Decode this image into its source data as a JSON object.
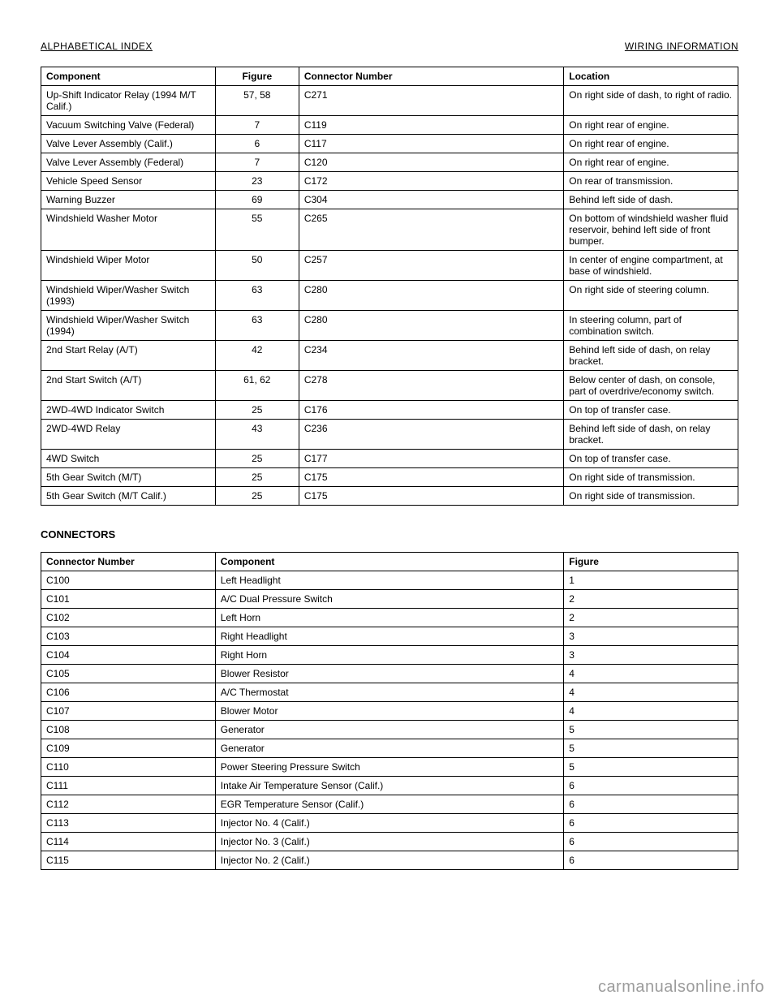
{
  "header": {
    "left": "ALPHABETICAL INDEX",
    "right": "WIRING INFORMATION"
  },
  "table1": {
    "columns": [
      "Component",
      "Figure",
      "Connector Number",
      "Location"
    ],
    "rows": [
      [
        "Up-Shift Indicator Relay (1994 M/T Calif.)",
        "57, 58",
        "C271",
        "On right side of dash, to right of radio."
      ],
      [
        "Vacuum Switching Valve (Federal)",
        "7",
        "C119",
        "On right rear of engine."
      ],
      [
        "Valve Lever Assembly (Calif.)",
        "6",
        "C117",
        "On right rear of engine."
      ],
      [
        "Valve Lever Assembly (Federal)",
        "7",
        "C120",
        "On right rear of engine."
      ],
      [
        "Vehicle Speed Sensor",
        "23",
        "C172",
        "On rear of transmission."
      ],
      [
        "Warning Buzzer",
        "69",
        "C304",
        "Behind left side of dash."
      ],
      [
        "Windshield Washer Motor",
        "55",
        "C265",
        "On bottom of windshield washer fluid reservoir, behind left side of front bumper."
      ],
      [
        "Windshield Wiper Motor",
        "50",
        "C257",
        "In center of engine compartment, at base of windshield."
      ],
      [
        "Windshield Wiper/Washer Switch (1993)",
        "63",
        "C280",
        "On right side of steering column."
      ],
      [
        "Windshield Wiper/Washer Switch (1994)",
        "63",
        "C280",
        "In steering column, part of combination switch."
      ],
      [
        "2nd Start Relay (A/T)",
        "42",
        "C234",
        "Behind left side of dash, on relay bracket."
      ],
      [
        "2nd Start Switch (A/T)",
        "61, 62",
        "C278",
        "Below center of dash, on console, part of overdrive/economy switch."
      ],
      [
        "2WD-4WD Indicator Switch",
        "25",
        "C176",
        "On top of transfer case."
      ],
      [
        "2WD-4WD Relay",
        "43",
        "C236",
        "Behind left side of dash, on relay bracket."
      ],
      [
        "4WD Switch",
        "25",
        "C177",
        "On top of transfer case."
      ],
      [
        "5th Gear Switch (M/T)",
        "25",
        "C175",
        "On right side of transmission."
      ],
      [
        "5th Gear Switch (M/T Calif.)",
        "25",
        "C175",
        "On right side of transmission."
      ]
    ]
  },
  "section2_title": "CONNECTORS",
  "table2": {
    "columns": [
      "Connector Number",
      "Component",
      "Figure"
    ],
    "rows": [
      [
        "C100",
        "Left Headlight",
        "1"
      ],
      [
        "C101",
        "A/C Dual Pressure Switch",
        "2"
      ],
      [
        "C102",
        "Left Horn",
        "2"
      ],
      [
        "C103",
        "Right Headlight",
        "3"
      ],
      [
        "C104",
        "Right Horn",
        "3"
      ],
      [
        "C105",
        "Blower Resistor",
        "4"
      ],
      [
        "C106",
        "A/C Thermostat",
        "4"
      ],
      [
        "C107",
        "Blower Motor",
        "4"
      ],
      [
        "C108",
        "Generator",
        "5"
      ],
      [
        "C109",
        "Generator",
        "5"
      ],
      [
        "C110",
        "Power Steering Pressure Switch",
        "5"
      ],
      [
        "C111",
        "Intake Air Temperature Sensor (Calif.)",
        "6"
      ],
      [
        "C112",
        "EGR Temperature Sensor (Calif.)",
        "6"
      ],
      [
        "C113",
        "Injector No. 4 (Calif.)",
        "6"
      ],
      [
        "C114",
        "Injector No. 3 (Calif.)",
        "6"
      ],
      [
        "C115",
        "Injector No. 2 (Calif.)",
        "6"
      ]
    ]
  },
  "footer": "carmanualsonline.info",
  "style": {
    "page_background": "#ffffff",
    "text_color": "#000000",
    "border_color": "#000000",
    "footer_color": "#9c9c9c",
    "body_font_size": 12,
    "footer_font_size": 20
  }
}
